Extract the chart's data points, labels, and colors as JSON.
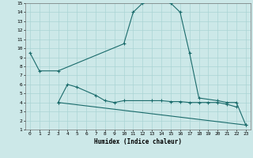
{
  "xlabel": "Humidex (Indice chaleur)",
  "bg_color": "#cce8e8",
  "grid_color": "#aad4d4",
  "line_color": "#1a6b6b",
  "xlim": [
    -0.5,
    23.5
  ],
  "ylim": [
    1,
    15
  ],
  "xticks": [
    0,
    1,
    2,
    3,
    4,
    5,
    6,
    7,
    8,
    9,
    10,
    11,
    12,
    13,
    14,
    15,
    16,
    17,
    18,
    19,
    20,
    21,
    22,
    23
  ],
  "yticks": [
    1,
    2,
    3,
    4,
    5,
    6,
    7,
    8,
    9,
    10,
    11,
    12,
    13,
    14,
    15
  ],
  "line1_x": [
    0,
    1,
    3,
    10,
    11,
    12,
    13,
    14,
    15,
    16,
    17,
    18,
    20,
    21,
    22,
    23
  ],
  "line1_y": [
    9.5,
    7.5,
    7.5,
    10.5,
    14.0,
    15.0,
    15.5,
    15.5,
    15.0,
    14.0,
    9.5,
    4.5,
    4.2,
    4.0,
    4.0,
    1.5
  ],
  "line2_x": [
    3,
    4,
    5,
    7,
    8,
    9,
    10,
    13,
    14,
    15,
    16,
    17,
    18,
    19,
    20,
    21,
    22
  ],
  "line2_y": [
    4.0,
    6.0,
    5.7,
    4.8,
    4.2,
    4.0,
    4.2,
    4.2,
    4.2,
    4.1,
    4.1,
    4.0,
    4.0,
    4.0,
    4.0,
    3.8,
    3.5
  ],
  "line3_x": [
    3,
    23
  ],
  "line3_y": [
    4.0,
    1.5
  ]
}
